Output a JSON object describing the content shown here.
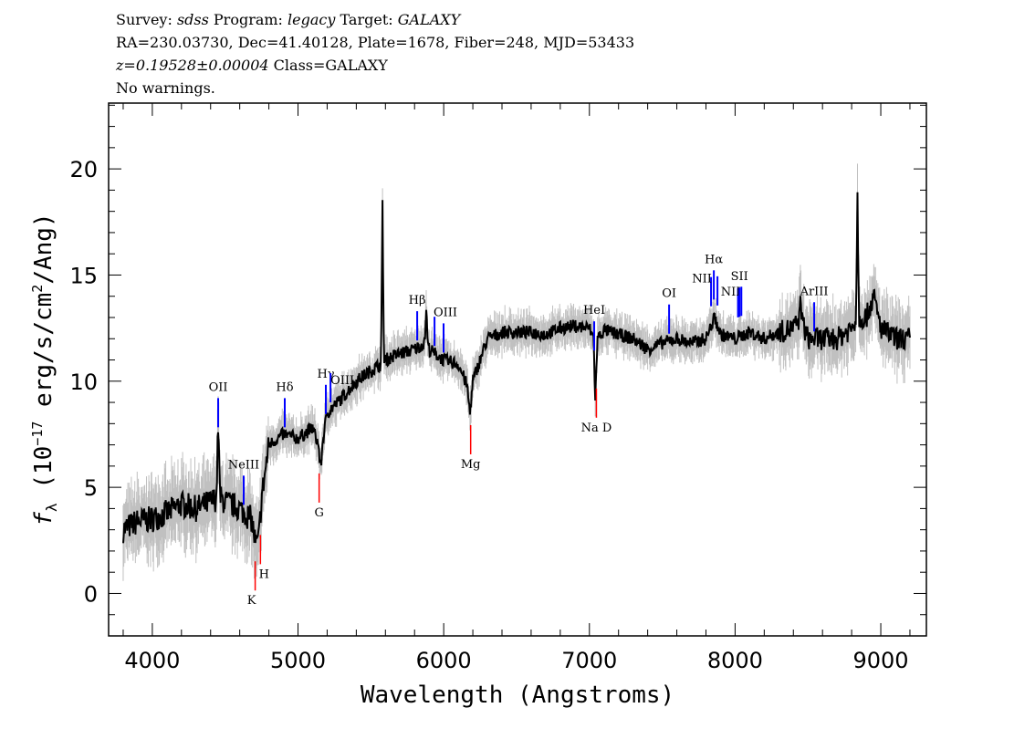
{
  "header": {
    "line1": {
      "survey_label": "Survey: ",
      "survey": "sdss",
      "program_label": " Program: ",
      "program": "legacy",
      "target_label": " Target: ",
      "target": "GALAXY"
    },
    "line2": "RA=230.03730, Dec=41.40128, Plate=1678, Fiber=248, MJD=53433",
    "line3": {
      "z": "z=0.19528±0.00004",
      "class": " Class=GALAXY"
    },
    "line4": "No warnings."
  },
  "chart_data": {
    "type": "line",
    "xlabel": "Wavelength (Angstroms)",
    "ylabel": {
      "f": "f",
      "sub": "λ",
      "pre": " (10",
      "exp": "−17",
      "mid": " erg/s/cm",
      "exp2": "2",
      "post": "/Ang)"
    },
    "xlim": [
      3700,
      9313
    ],
    "ylim": [
      -2.0,
      23.1
    ],
    "xticks": [
      4000,
      5000,
      6000,
      7000,
      8000,
      9000
    ],
    "yticks": [
      0,
      5,
      10,
      15,
      20
    ],
    "grid": false,
    "colors": {
      "spectrum": "#000000",
      "error_band": "#c0c0c0",
      "emission": "#0000ff",
      "absorption": "#ff0000"
    },
    "spectrum": {
      "wavelength": [
        3800,
        3900,
        4000,
        4100,
        4200,
        4300,
        4400,
        4440,
        4452,
        4465,
        4500,
        4600,
        4680,
        4710,
        4730,
        4750,
        4800,
        4900,
        5000,
        5100,
        5140,
        5155,
        5170,
        5200,
        5300,
        5400,
        5500,
        5570,
        5580,
        5590,
        5600,
        5700,
        5800,
        5870,
        5880,
        5890,
        5900,
        6000,
        6100,
        6160,
        6180,
        6200,
        6250,
        6300,
        6400,
        6500,
        6600,
        6700,
        6800,
        6900,
        7000,
        7030,
        7040,
        7055,
        7100,
        7200,
        7300,
        7400,
        7500,
        7600,
        7700,
        7800,
        7860,
        7900,
        8000,
        8100,
        8200,
        8300,
        8400,
        8440,
        8450,
        8460,
        8500,
        8600,
        8700,
        8800,
        8830,
        8840,
        8850,
        8900,
        8950,
        9000,
        9100,
        9200
      ],
      "flux": [
        3.0,
        3.4,
        3.5,
        3.8,
        4.2,
        4.0,
        4.3,
        4.5,
        8.0,
        4.5,
        4.3,
        4.0,
        3.5,
        2.3,
        2.5,
        4.5,
        7.0,
        7.5,
        7.3,
        7.8,
        7.0,
        5.8,
        7.2,
        8.5,
        9.2,
        10.0,
        10.5,
        10.8,
        18.5,
        10.8,
        11.0,
        11.3,
        11.5,
        11.8,
        13.5,
        11.8,
        11.5,
        11.0,
        10.8,
        9.8,
        8.5,
        10.0,
        11.0,
        12.0,
        12.3,
        12.3,
        12.3,
        12.2,
        12.5,
        12.6,
        12.5,
        12.0,
        9.0,
        12.0,
        12.4,
        12.2,
        12.0,
        11.5,
        11.8,
        12.0,
        11.8,
        12.0,
        13.0,
        12.2,
        12.0,
        12.3,
        12.0,
        12.3,
        12.5,
        12.8,
        14.3,
        12.8,
        12.0,
        12.0,
        12.0,
        12.5,
        13.0,
        19.0,
        13.0,
        13.0,
        14.0,
        12.5,
        12.0,
        12.0
      ]
    },
    "lines": [
      {
        "label": "OII",
        "wavelength": 4452,
        "type": "emission"
      },
      {
        "label": "NeIII",
        "wavelength": 4627,
        "type": "emission"
      },
      {
        "label": "Hδ",
        "wavelength": 4909,
        "type": "emission"
      },
      {
        "label": "Hγ",
        "wavelength": 5191,
        "type": "emission"
      },
      {
        "label": "OIII",
        "wavelength": 5223,
        "type": "emission"
      },
      {
        "label": "Hβ",
        "wavelength": 5818,
        "type": "emission"
      },
      {
        "label": "",
        "wavelength": 5937,
        "type": "emission"
      },
      {
        "label": "OIII",
        "wavelength": 5999,
        "type": "emission"
      },
      {
        "label": "HeI",
        "wavelength": 7033,
        "type": "emission"
      },
      {
        "label": "OI",
        "wavelength": 7547,
        "type": "emission"
      },
      {
        "label": "NII",
        "wavelength": 7835,
        "type": "emission"
      },
      {
        "label": "Hα",
        "wavelength": 7854,
        "type": "emission"
      },
      {
        "label": "",
        "wavelength": 7879,
        "type": "emission"
      },
      {
        "label": "NII",
        "wavelength": 8020,
        "type": "emission"
      },
      {
        "label": "SII",
        "wavelength": 8030,
        "type": "emission"
      },
      {
        "label": "",
        "wavelength": 8043,
        "type": "emission"
      },
      {
        "label": "ArIII",
        "wavelength": 8543,
        "type": "emission"
      },
      {
        "label": "K",
        "wavelength": 4706,
        "type": "absorption"
      },
      {
        "label": "H",
        "wavelength": 4742,
        "type": "absorption"
      },
      {
        "label": "G",
        "wavelength": 5145,
        "type": "absorption"
      },
      {
        "label": "Mg",
        "wavelength": 6185,
        "type": "absorption"
      },
      {
        "label": "Na D",
        "wavelength": 7048,
        "type": "absorption"
      }
    ]
  }
}
